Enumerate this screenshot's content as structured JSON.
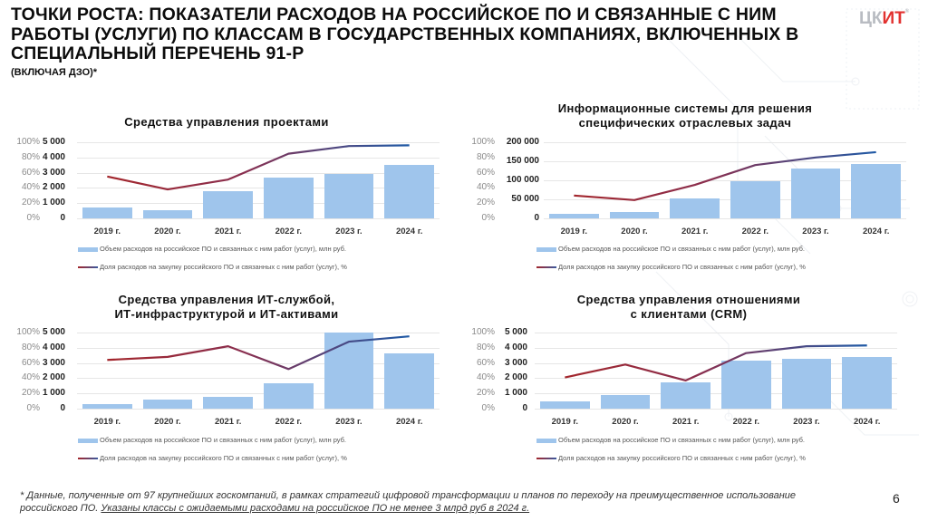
{
  "header": {
    "title": "ТОЧКИ РОСТА: ПОКАЗАТЕЛИ РАСХОДОВ НА РОССИЙСКОЕ ПО И СВЯЗАННЫЕ С НИМ РАБОТЫ (УСЛУГИ) ПО КЛАССАМ В ГОСУДАРСТВЕННЫХ КОМПАНИЯХ, ВКЛЮЧЕННЫХ В СПЕЦИАЛЬНЫЙ ПЕРЕЧЕНЬ 91-Р",
    "subtitle": "(ВКЛЮЧАЯ ДЗО)*",
    "logo_part1": "ЦК",
    "logo_part2": "ИТ",
    "logo_reg": "®"
  },
  "legend": {
    "bar_label": "Объем расходов на российское ПО и связанных с ним работ (услуг), млн руб.",
    "line_label": "Доля расходов на закупку российского ПО и связанных с ним работ (услуг), %"
  },
  "colors": {
    "bar": "#9fc5ec",
    "line_start": "#a3262c",
    "line_end": "#1f5aa6",
    "logo_gray": "#b9bcc2",
    "logo_red": "#e2312f"
  },
  "chart_data": [
    {
      "type": "bar",
      "title": "Средства управления проектами",
      "categories": [
        "2019 г.",
        "2020 г.",
        "2021 г.",
        "2022 г.",
        "2023 г.",
        "2024 г."
      ],
      "series": [
        {
          "name": "Объем расходов на российское ПО и связанных с ним работ (услуг), млн руб.",
          "type": "bar",
          "axis": "left",
          "values": [
            700,
            550,
            1800,
            2700,
            2900,
            3500
          ]
        },
        {
          "name": "Доля расходов на закупку российского ПО и связанных с ним работ (услуг), %",
          "type": "line",
          "axis": "pct",
          "values": [
            55,
            38,
            51,
            85,
            95,
            96
          ]
        }
      ],
      "y_ticks": [
        "0",
        "1 000",
        "2 000",
        "3 000",
        "4 000",
        "5 000"
      ],
      "pct_ticks": [
        "0%",
        "20%",
        "40%",
        "60%",
        "80%",
        "100%"
      ],
      "ylim": [
        0,
        5000
      ],
      "pct_lim": [
        0,
        100
      ],
      "grid": true,
      "legend_position": "bottom"
    },
    {
      "type": "bar",
      "title": "Информационные системы для решения специфических отраслевых задач",
      "categories": [
        "2019 г.",
        "2020 г.",
        "2021 г.",
        "2022 г.",
        "2023 г.",
        "2024 г."
      ],
      "series": [
        {
          "name": "Объем расходов на российское ПО и связанных с ним работ (услуг), млн руб.",
          "type": "bar",
          "axis": "left",
          "values": [
            12000,
            17000,
            52000,
            98000,
            130000,
            143000
          ]
        },
        {
          "name": "Доля расходов на закупку российского ПО и связанных с ним работ (услуг), %",
          "type": "line",
          "axis": "pct",
          "values": [
            30,
            24,
            44,
            70,
            80,
            87
          ]
        }
      ],
      "y_ticks": [
        "0",
        "50 000",
        "100 000",
        "150 000",
        "200 000"
      ],
      "pct_ticks": [
        "0%",
        "20%",
        "40%",
        "60%",
        "80%",
        "100%"
      ],
      "ylim": [
        0,
        200000
      ],
      "pct_lim": [
        0,
        100
      ],
      "grid": true,
      "legend_position": "bottom"
    },
    {
      "type": "bar",
      "title": "Средства управления ИТ-службой, ИТ-инфраструктурой и ИТ-активами",
      "categories": [
        "2019 г.",
        "2020 г.",
        "2021 г.",
        "2022 г.",
        "2023 г.",
        "2024 г."
      ],
      "series": [
        {
          "name": "Объем расходов на российское ПО и связанных с ним работ (услуг), млн руб.",
          "type": "bar",
          "axis": "left",
          "values": [
            300,
            600,
            800,
            1650,
            5000,
            3650
          ]
        },
        {
          "name": "Доля расходов на закупку российского ПО и связанных с ним работ (услуг), %",
          "type": "line",
          "axis": "pct",
          "values": [
            64,
            68,
            82,
            52,
            88,
            95
          ]
        }
      ],
      "y_ticks": [
        "0",
        "1 000",
        "2 000",
        "3 000",
        "4 000",
        "5 000"
      ],
      "pct_ticks": [
        "0%",
        "20%",
        "40%",
        "60%",
        "80%",
        "100%"
      ],
      "ylim": [
        0,
        5000
      ],
      "pct_lim": [
        0,
        100
      ],
      "grid": true,
      "legend_position": "bottom"
    },
    {
      "type": "bar",
      "title": "Средства управления отношениями с клиентами (CRM)",
      "categories": [
        "2019 г.",
        "2020 г.",
        "2021 г.",
        "2022 г.",
        "2023 г.",
        "2024 г."
      ],
      "series": [
        {
          "name": "Объем расходов на российское ПО и связанных с ним работ (услуг), млн руб.",
          "type": "bar",
          "axis": "left",
          "values": [
            500,
            900,
            1700,
            3150,
            3300,
            3400
          ]
        },
        {
          "name": "Доля расходов на закупку российского ПО и связанных с ним работ (услуг), %",
          "type": "line",
          "axis": "pct",
          "values": [
            41,
            58,
            37,
            73,
            82,
            83
          ]
        }
      ],
      "y_ticks": [
        "0",
        "1 000",
        "2 000",
        "3 000",
        "4 000",
        "5 000"
      ],
      "pct_ticks": [
        "0%",
        "20%",
        "40%",
        "60%",
        "80%",
        "100%"
      ],
      "ylim": [
        0,
        5000
      ],
      "pct_lim": [
        0,
        100
      ],
      "grid": true,
      "legend_position": "bottom"
    }
  ],
  "charts_layout": [
    {
      "title_lines": [
        "Средства управления проектами"
      ]
    },
    {
      "title_lines": [
        "Информационные системы для решения",
        "специфических отраслевых задач"
      ]
    },
    {
      "title_lines": [
        "Средства управления ИТ-службой,",
        "ИТ-инфраструктурой и ИТ-активами"
      ]
    },
    {
      "title_lines": [
        "Средства управления отношениями",
        "с клиентами (CRM)"
      ]
    }
  ],
  "footnote": {
    "text": "* Данные, полученные от 97 крупнейших госкомпаний, в рамках стратегий цифровой трансформации и планов по переходу на преимущественное использование российского ПО. ",
    "underlined": "Указаны классы с ожидаемыми расходами на российское ПО не менее 3 млрд руб в 2024 г."
  },
  "page_number": "6"
}
